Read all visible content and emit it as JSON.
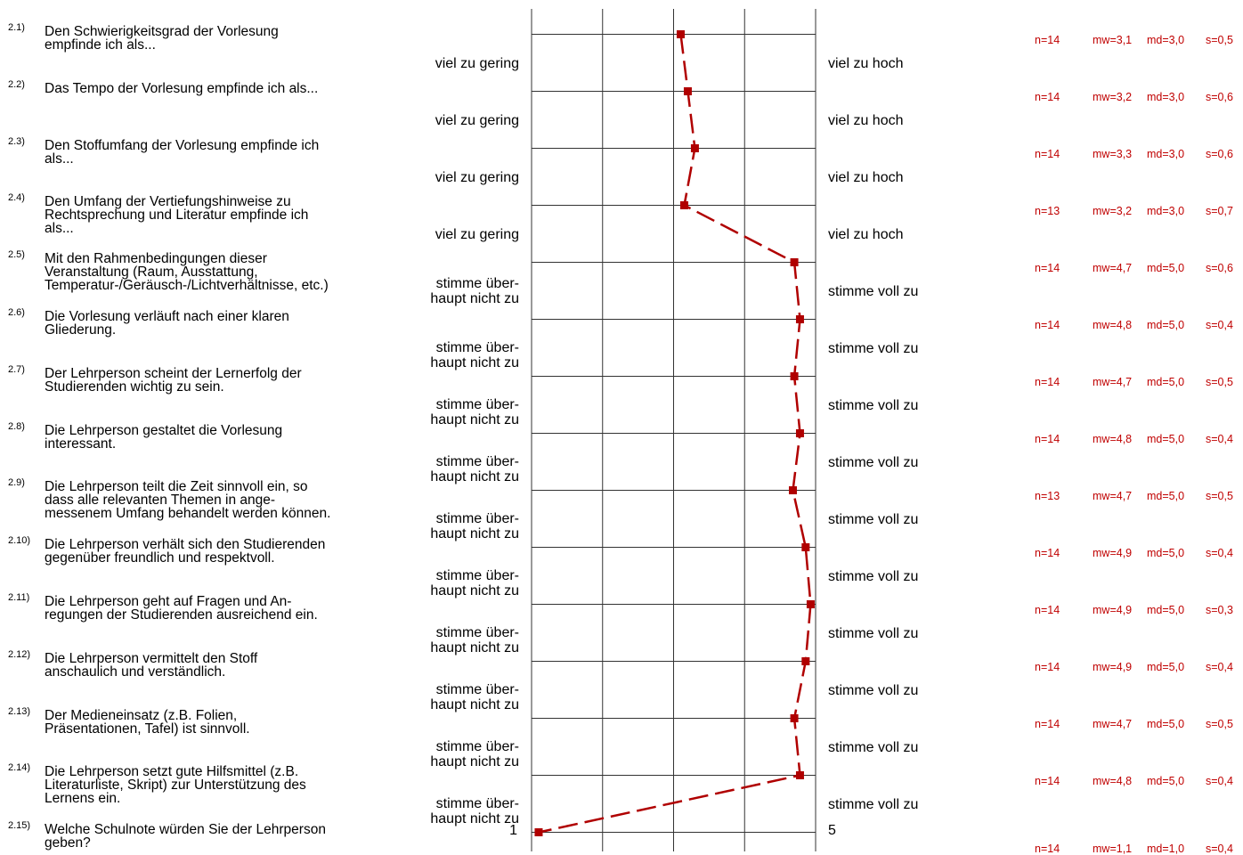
{
  "chart_data": {
    "type": "line",
    "scale_min": 1,
    "scale_max": 5,
    "line_color": "#b00000",
    "items": [
      {
        "num": "2.1)",
        "question": "Den Schwierigkeitsgrad der Vorlesung\nempfinde ich als...",
        "left_label": "viel zu gering",
        "right_label": "viel zu hoch",
        "n": "n=14",
        "mw": "mw=3,1",
        "md": "md=3,0",
        "s": "s=0,5",
        "value": 3.1
      },
      {
        "num": "2.2)",
        "question": "Das Tempo der Vorlesung empfinde ich als...",
        "left_label": "viel zu gering",
        "right_label": "viel zu hoch",
        "n": "n=14",
        "mw": "mw=3,2",
        "md": "md=3,0",
        "s": "s=0,6",
        "value": 3.2
      },
      {
        "num": "2.3)",
        "question": "Den Stoffumfang der Vorlesung empfinde ich\nals...",
        "left_label": "viel zu gering",
        "right_label": "viel zu hoch",
        "n": "n=14",
        "mw": "mw=3,3",
        "md": "md=3,0",
        "s": "s=0,6",
        "value": 3.3
      },
      {
        "num": "2.4)",
        "question": "Den Umfang der Vertiefungshinweise zu\nRechtsprechung und Literatur empfinde ich\nals...",
        "left_label": "viel zu gering",
        "right_label": "viel zu hoch",
        "n": "n=13",
        "mw": "mw=3,2",
        "md": "md=3,0",
        "s": "s=0,7",
        "value": 3.15
      },
      {
        "num": "2.5)",
        "question": "Mit den Rahmenbedingungen dieser\nVeranstaltung (Raum, Ausstattung,\nTemperatur-/Geräusch-/Lichtverhältnisse, etc.)",
        "left_label": "stimme über-\nhaupt nicht zu",
        "right_label": "stimme voll zu",
        "n": "n=14",
        "mw": "mw=4,7",
        "md": "md=5,0",
        "s": "s=0,6",
        "value": 4.7
      },
      {
        "num": "2.6)",
        "question": "Die Vorlesung verläuft nach einer klaren\nGliederung.",
        "left_label": "stimme über-\nhaupt nicht zu",
        "right_label": "stimme voll zu",
        "n": "n=14",
        "mw": "mw=4,8",
        "md": "md=5,0",
        "s": "s=0,4",
        "value": 4.78
      },
      {
        "num": "2.7)",
        "question": "Der Lehrperson scheint der Lernerfolg der\nStudierenden wichtig zu sein.",
        "left_label": "stimme über-\nhaupt nicht zu",
        "right_label": "stimme voll zu",
        "n": "n=14",
        "mw": "mw=4,7",
        "md": "md=5,0",
        "s": "s=0,5",
        "value": 4.7
      },
      {
        "num": "2.8)",
        "question": "Die Lehrperson gestaltet die Vorlesung\ninteressant.",
        "left_label": "stimme über-\nhaupt nicht zu",
        "right_label": "stimme voll zu",
        "n": "n=14",
        "mw": "mw=4,8",
        "md": "md=5,0",
        "s": "s=0,4",
        "value": 4.78
      },
      {
        "num": "2.9)",
        "question": "Die Lehrperson teilt die Zeit sinnvoll ein, so\ndass alle relevanten Themen in ange-\nmessenem Umfang behandelt werden können.",
        "left_label": "stimme über-\nhaupt nicht zu",
        "right_label": "stimme voll zu",
        "n": "n=13",
        "mw": "mw=4,7",
        "md": "md=5,0",
        "s": "s=0,5",
        "value": 4.68
      },
      {
        "num": "2.10)",
        "question": "Die Lehrperson verhält sich den Studierenden\ngegenüber freundlich und respektvoll.",
        "left_label": "stimme über-\nhaupt nicht zu",
        "right_label": "stimme voll zu",
        "n": "n=14",
        "mw": "mw=4,9",
        "md": "md=5,0",
        "s": "s=0,4",
        "value": 4.86
      },
      {
        "num": "2.11)",
        "question": "Die Lehrperson geht auf Fragen und An-\nregungen der Studierenden ausreichend ein.",
        "left_label": "stimme über-\nhaupt nicht zu",
        "right_label": "stimme voll zu",
        "n": "n=14",
        "mw": "mw=4,9",
        "md": "md=5,0",
        "s": "s=0,3",
        "value": 4.93
      },
      {
        "num": "2.12)",
        "question": "Die Lehrperson vermittelt den Stoff\nanschaulich und verständlich.",
        "left_label": "stimme über-\nhaupt nicht zu",
        "right_label": "stimme voll zu",
        "n": "n=14",
        "mw": "mw=4,9",
        "md": "md=5,0",
        "s": "s=0,4",
        "value": 4.86
      },
      {
        "num": "2.13)",
        "question": "Der Medieneinsatz (z.B. Folien,\nPräsentationen, Tafel) ist sinnvoll.",
        "left_label": "stimme über-\nhaupt nicht zu",
        "right_label": "stimme voll zu",
        "n": "n=14",
        "mw": "mw=4,7",
        "md": "md=5,0",
        "s": "s=0,5",
        "value": 4.7
      },
      {
        "num": "2.14)",
        "question": "Die Lehrperson setzt gute Hilfsmittel (z.B.\nLiteraturliste, Skript) zur Unterstützung des\nLernens ein.",
        "left_label": "stimme über-\nhaupt nicht zu",
        "right_label": "stimme voll zu",
        "n": "n=14",
        "mw": "mw=4,8",
        "md": "md=5,0",
        "s": "s=0,4",
        "value": 4.78
      },
      {
        "num": "2.15)",
        "question": "Welche Schulnote würden Sie der Lehrperson\ngeben?",
        "left_label": "1",
        "right_label": "5",
        "n": "n=14",
        "mw": "mw=1,1",
        "md": "md=1,0",
        "s": "s=0,4",
        "value": 1.1
      }
    ]
  }
}
